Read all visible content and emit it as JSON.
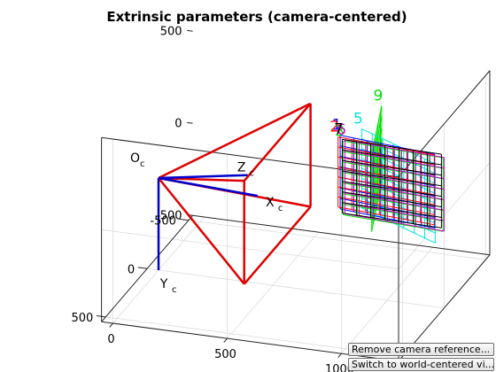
{
  "chart_data": {
    "type": "3d-line",
    "title": "Extrinsic parameters (camera-centered)",
    "axes": {
      "x": {
        "ticks": [
          -500,
          0,
          500
        ],
        "label_tick_text": [
          "-500",
          "0",
          "500"
        ]
      },
      "y": {
        "ticks": [
          0,
          500,
          1000
        ],
        "label_tick_text": [
          "0",
          "500",
          "1000"
        ]
      },
      "z": {
        "ticks": [
          -500,
          0,
          500
        ],
        "label_tick_text": [
          "-500",
          "0",
          "500"
        ]
      },
      "xlim": [
        -550,
        550
      ],
      "ylim": [
        -50,
        1250
      ],
      "zlim": [
        -500,
        500
      ],
      "grid": true
    },
    "camera": {
      "color": "#e00000",
      "origin_label": "O",
      "origin_subscript": "c",
      "center": [
        0,
        0,
        0
      ],
      "frustum_corners": [
        [
          -400,
          520,
          280
        ],
        [
          400,
          520,
          280
        ],
        [
          400,
          520,
          -280
        ],
        [
          -400,
          520,
          -280
        ]
      ],
      "axes": [
        {
          "name": "X",
          "subscript": "c",
          "end": [
            -230,
            350,
            -160
          ],
          "color": "#0000cc"
        },
        {
          "name": "Y",
          "subscript": "c",
          "end": [
            0,
            0,
            -500
          ],
          "color": "#0000cc"
        },
        {
          "name": "Z",
          "subscript": "c",
          "end": [
            0,
            390,
            80
          ],
          "color": "#0000cc"
        }
      ]
    },
    "series": [
      {
        "name": "9",
        "color": "#00e000",
        "center": [
          -150,
          900,
          120
        ],
        "width": 480,
        "height": 420,
        "yaw": 15,
        "nx": 8,
        "ny": 7
      },
      {
        "name": "5",
        "color": "#00e5e5",
        "center": [
          0,
          1050,
          130
        ],
        "width": 470,
        "height": 430,
        "yaw": 60,
        "nx": 7,
        "ny": 8
      },
      {
        "name": "1",
        "color": "#0000ff",
        "center": [
          -60,
          980,
          110
        ],
        "width": 440,
        "height": 400,
        "yaw": 82,
        "nx": 7,
        "ny": 7
      },
      {
        "name": "2",
        "color": "#ff0000",
        "center": [
          -100,
          960,
          90
        ],
        "width": 440,
        "height": 380,
        "yaw": 84,
        "nx": 7,
        "ny": 7
      },
      {
        "name": "3",
        "color": "#00e000",
        "center": [
          10,
          1030,
          130
        ],
        "width": 450,
        "height": 400,
        "yaw": 86,
        "nx": 7,
        "ny": 7
      },
      {
        "name": "6",
        "color": "#d000d0",
        "center": [
          20,
          1040,
          140
        ],
        "width": 450,
        "height": 400,
        "yaw": 85,
        "nx": 7,
        "ny": 7
      },
      {
        "name": "7",
        "color": "#000000",
        "center": [
          -30,
          1010,
          120
        ],
        "width": 440,
        "height": 400,
        "yaw": 88,
        "nx": 7,
        "ny": 7
      }
    ]
  },
  "ui": {
    "remove_camera_button": "Remove camera reference...",
    "switch_view_button": "Switch to world-centered vi..."
  }
}
